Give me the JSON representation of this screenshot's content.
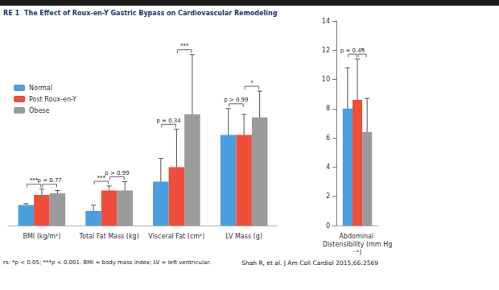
{
  "chart_data": [
    {
      "type": "bar",
      "figure_label": "RE 1",
      "title": "The Effect of Roux-en-Y Gastric Bypass on Cardiovascular Remodeling",
      "note": "rs: *p < 0.05; ***p < 0.001. BMI = body mass index; LV = left ventricular.",
      "source": "Shah R, et al. J Am Coll Cardiol 2015;66:2569",
      "legend": "top-left",
      "tick_labels": false,
      "categories": [
        "BMI (kg/m²)",
        "Total Fat Mass (kg)",
        "Visceral Fat (cm²)",
        "LV Mass (g)"
      ],
      "ylim": [
        0,
        14
      ],
      "series": [
        {
          "name": "Normal",
          "color": "#4a9fe0",
          "values": [
            1.4,
            1.0,
            3.0,
            6.2
          ],
          "errors": [
            [
              1.3,
              1.5
            ],
            [
              0.7,
              1.4
            ],
            [
              1.2,
              4.6
            ],
            [
              4.6,
              8.0
            ]
          ]
        },
        {
          "name": "Post Roux-en-Y",
          "color": "#ef4e3b",
          "values": [
            2.1,
            2.4,
            4.0,
            6.2
          ],
          "errors": [
            [
              1.7,
              2.5
            ],
            [
              2.0,
              2.7
            ],
            [
              1.2,
              6.6
            ],
            [
              4.9,
              7.6
            ]
          ]
        },
        {
          "name": "Obese",
          "color": "#9b9b9b",
          "values": [
            2.2,
            2.4,
            7.6,
            7.4
          ],
          "errors": [
            [
              2.0,
              2.4
            ],
            [
              2.0,
              3.0
            ],
            [
              3.8,
              11.7
            ],
            [
              5.4,
              9.2
            ]
          ]
        }
      ],
      "comparisons": [
        {
          "category": "BMI (kg/m²)",
          "groups": [
            "Normal",
            "Post Roux-en-Y"
          ],
          "label": "***"
        },
        {
          "category": "BMI (kg/m²)",
          "groups": [
            "Post Roux-en-Y",
            "Obese"
          ],
          "label": "p = 0.77"
        },
        {
          "category": "Total Fat Mass (kg)",
          "groups": [
            "Normal",
            "Post Roux-en-Y"
          ],
          "label": "***"
        },
        {
          "category": "Total Fat Mass (kg)",
          "groups": [
            "Post Roux-en-Y",
            "Obese"
          ],
          "label": "p > 0.99"
        },
        {
          "category": "Visceral Fat (cm²)",
          "groups": [
            "Normal",
            "Post Roux-en-Y"
          ],
          "label": "p = 0.34"
        },
        {
          "category": "Visceral Fat (cm²)",
          "groups": [
            "Post Roux-en-Y",
            "Obese"
          ],
          "label": "***"
        },
        {
          "category": "LV Mass (g)",
          "groups": [
            "Normal",
            "Post Roux-en-Y"
          ],
          "label": "p > 0.99"
        },
        {
          "category": "LV Mass (g)",
          "groups": [
            "Post Roux-en-Y",
            "Obese"
          ],
          "label": "*"
        }
      ]
    },
    {
      "type": "bar",
      "tick_labels": "y",
      "categories": [
        "Abdominal Distensibility (mm Hg⁻¹)"
      ],
      "ylim": [
        0,
        14
      ],
      "yticks": [
        0,
        2,
        4,
        6,
        8,
        10,
        12,
        14
      ],
      "series": [
        {
          "name": "Normal",
          "color": "#4a9fe0",
          "values": [
            8.0
          ],
          "errors": [
            [
              5.2,
              10.8
            ]
          ]
        },
        {
          "name": "Post Roux-en-Y",
          "color": "#ef4e3b",
          "values": [
            8.6
          ],
          "errors": [
            [
              5.8,
              11.4
            ]
          ]
        },
        {
          "name": "Obese",
          "color": "#9b9b9b",
          "values": [
            6.4
          ],
          "errors": [
            [
              4.0,
              8.7
            ]
          ]
        }
      ],
      "comparisons": [
        {
          "category": "Abdominal Distensibility (mm Hg⁻¹)",
          "groups": [
            "Normal",
            "Post Roux-en-Y"
          ],
          "label": "p = 0.43"
        },
        {
          "category": "Abdominal Distensibility (mm Hg⁻¹)",
          "groups": [
            "Post Roux-en-Y",
            "Obese"
          ],
          "label": "*"
        }
      ]
    }
  ]
}
